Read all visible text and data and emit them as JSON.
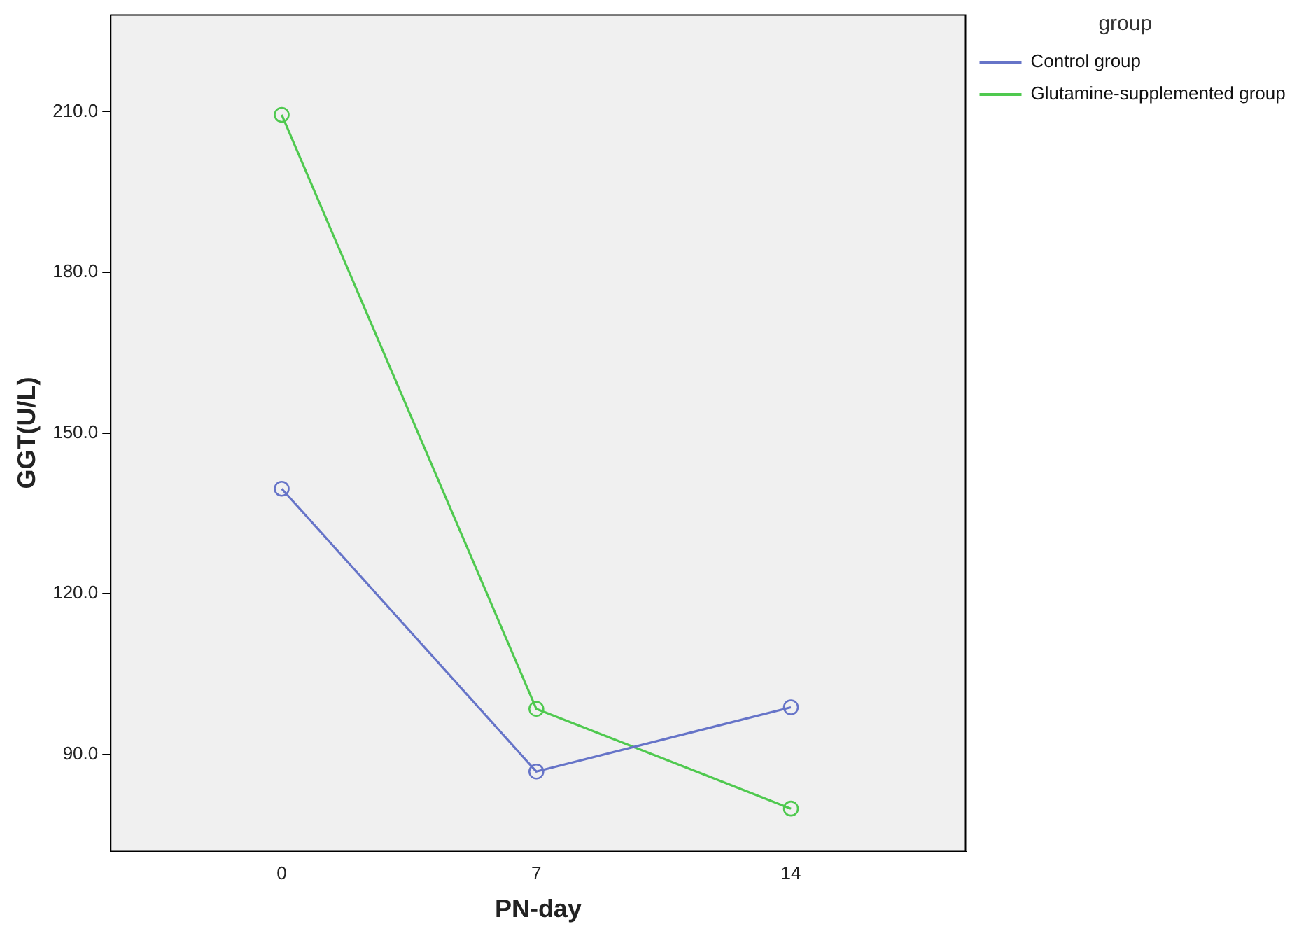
{
  "chart_data": {
    "type": "line",
    "xlabel": "PN-day",
    "ylabel": "GGT(U/L)",
    "legend_title": "group",
    "x": [
      0,
      7,
      14
    ],
    "series": [
      {
        "name": "Control group",
        "color": "#6674c8",
        "values": [
          139.6,
          86.8,
          98.8
        ]
      },
      {
        "name": "Glutamine-supplemented group",
        "color": "#4fc94f",
        "values": [
          209.4,
          98.5,
          79.9
        ]
      }
    ],
    "xlim": [
      -4.7,
      18.8
    ],
    "xticks": [
      0,
      7,
      14
    ],
    "ylim": [
      72,
      228
    ],
    "yticks": [
      {
        "value": 90,
        "label": "90.0"
      },
      {
        "value": 120,
        "label": "120.0"
      },
      {
        "value": 150,
        "label": "150.0"
      },
      {
        "value": 180,
        "label": "180.0"
      },
      {
        "value": 210,
        "label": "210.0"
      }
    ],
    "grid": false,
    "legend": "top right",
    "marker": "circle",
    "line_style": "solid"
  }
}
